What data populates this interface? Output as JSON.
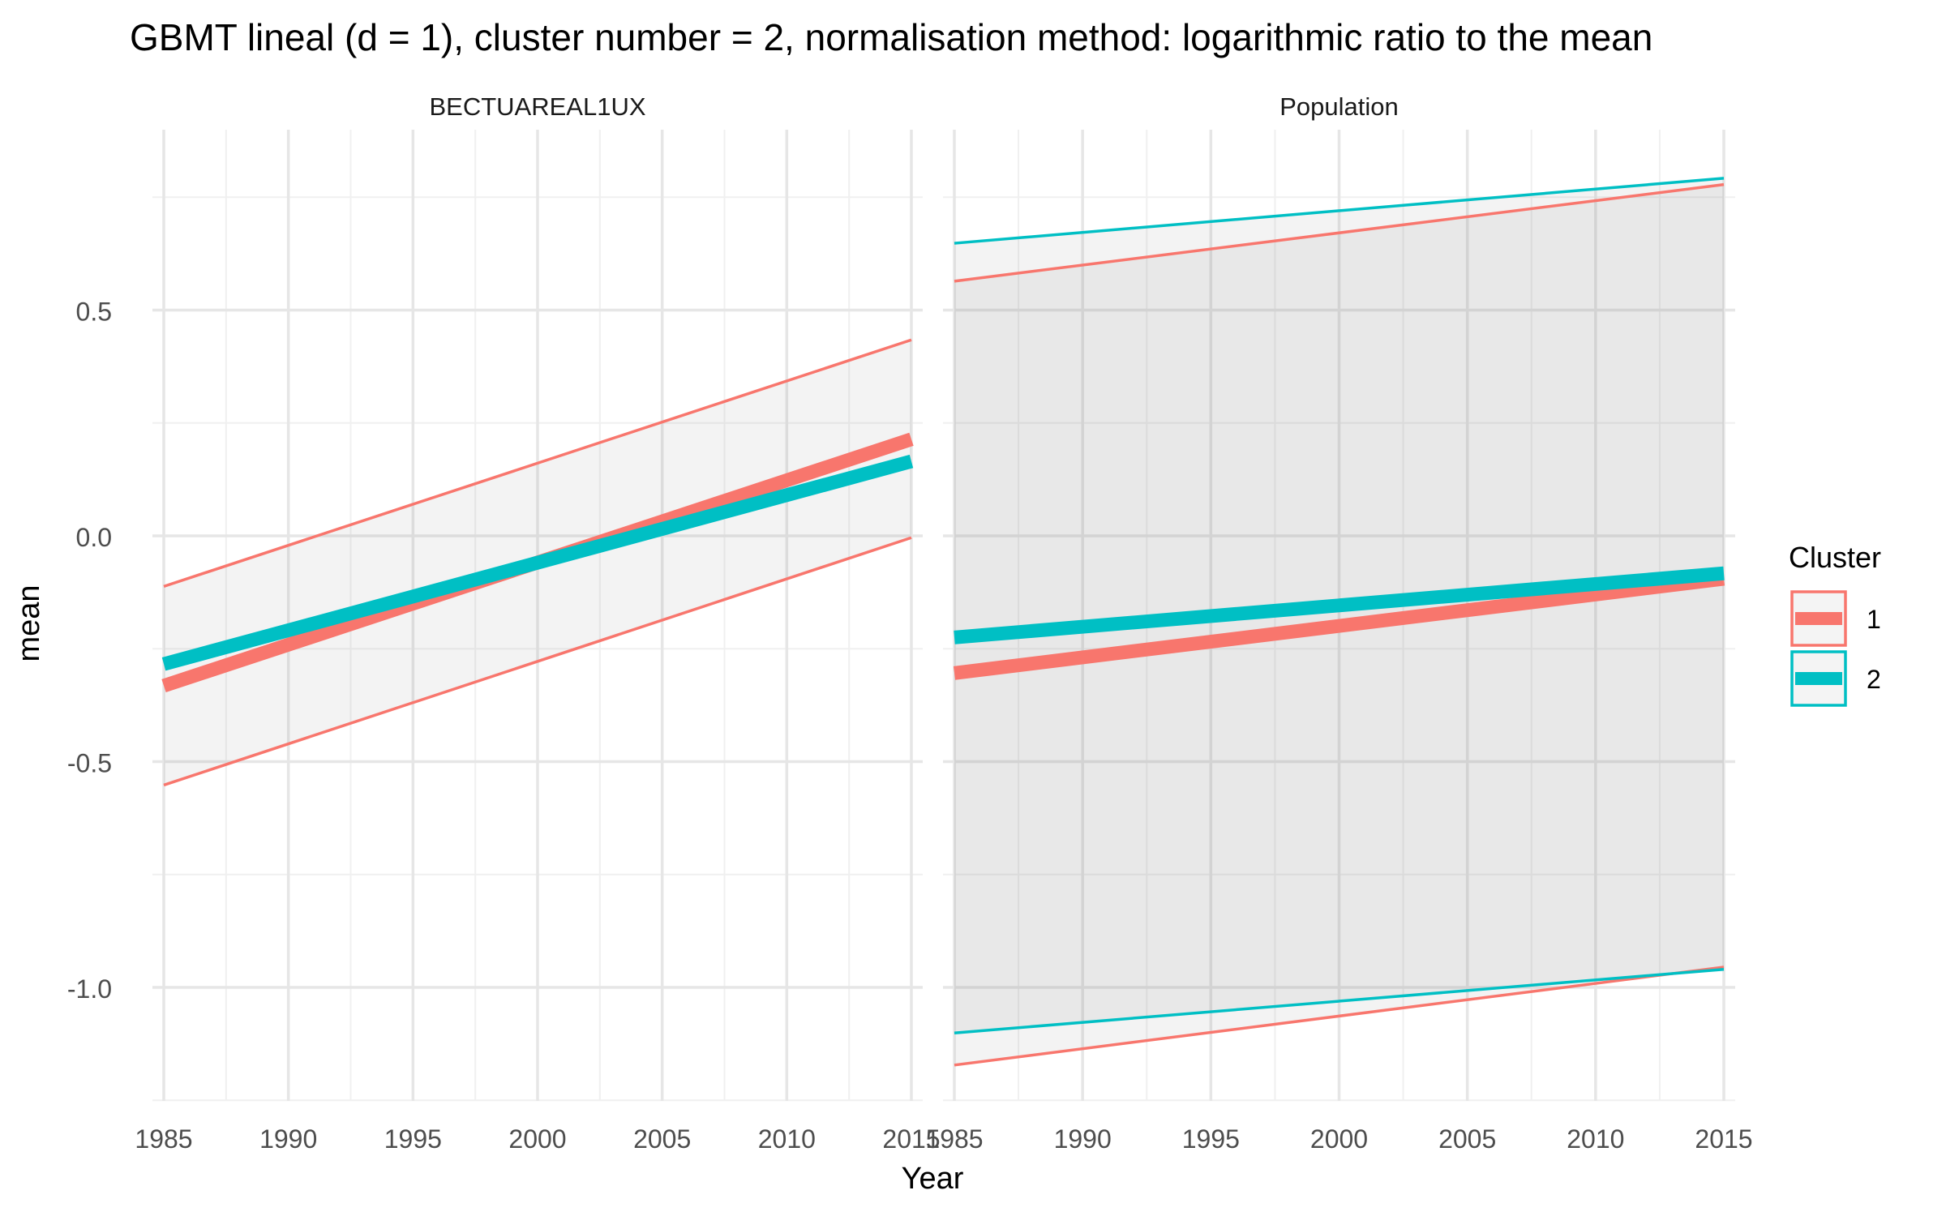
{
  "chart_data": {
    "type": "line",
    "title": "GBMT lineal (d = 1), cluster number = 2, normalisation method: logarithmic ratio to the mean",
    "xlabel": "Year",
    "ylabel": "mean",
    "xlim": [
      1985,
      2015
    ],
    "ylim": [
      -1.25,
      0.8
    ],
    "x_ticks": [
      "1985",
      "1990",
      "1995",
      "2000",
      "2005",
      "2010",
      "2015"
    ],
    "y_ticks": [
      "0.5",
      "0.0",
      "-0.5",
      "-1.0"
    ],
    "grid": true,
    "legend": {
      "title": "Cluster",
      "position": "right",
      "entries": [
        {
          "label": "1",
          "color": "#F8766D"
        },
        {
          "label": "2",
          "color": "#00BFC4"
        }
      ]
    },
    "panels": [
      {
        "title": "BECTUAREAL1UX",
        "series": [
          {
            "name": "1",
            "color": "#F8766D",
            "x": [
              1985,
              2015
            ],
            "mean": [
              -0.332,
              0.214
            ],
            "lower": [
              -0.552,
              -0.004
            ],
            "upper": [
              -0.112,
              0.434
            ]
          },
          {
            "name": "2",
            "color": "#00BFC4",
            "x": [
              1985,
              2015
            ],
            "mean": [
              -0.284,
              0.165
            ]
          }
        ]
      },
      {
        "title": "Population",
        "series": [
          {
            "name": "1",
            "color": "#F8766D",
            "x": [
              1985,
              2015
            ],
            "mean": [
              -0.304,
              -0.095
            ],
            "lower": [
              -1.172,
              -0.955
            ],
            "upper": [
              0.564,
              0.778
            ]
          },
          {
            "name": "2",
            "color": "#00BFC4",
            "x": [
              1985,
              2015
            ],
            "mean": [
              -0.225,
              -0.083
            ],
            "lower": [
              -1.101,
              -0.96
            ],
            "upper": [
              0.648,
              0.792
            ]
          }
        ]
      }
    ]
  }
}
